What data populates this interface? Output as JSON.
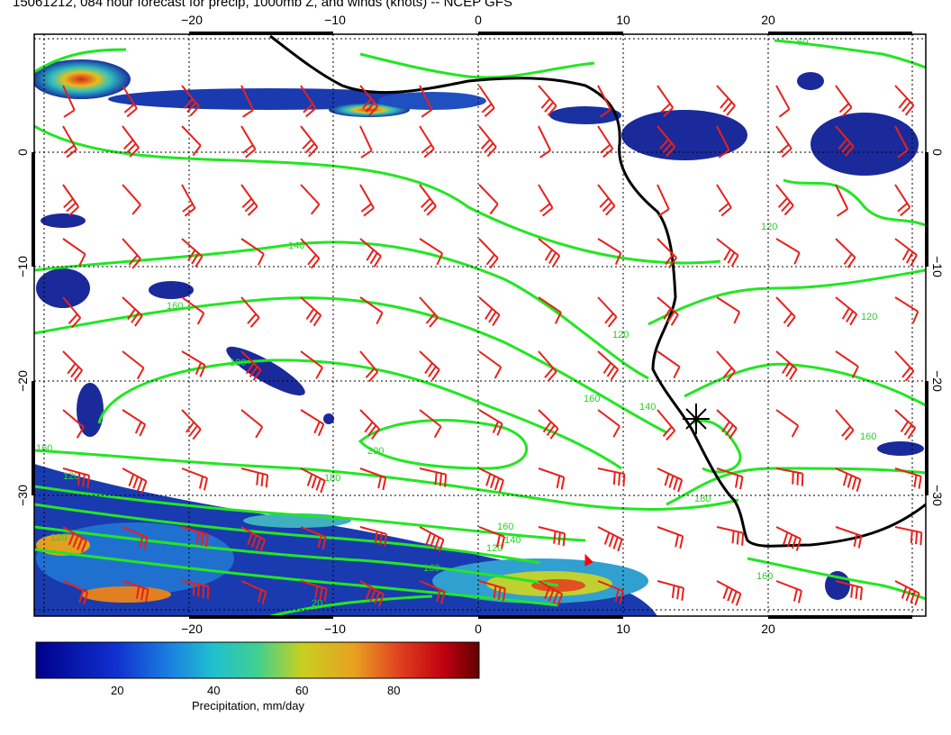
{
  "title": "15061212, 084 hour forecast for precip, 1000mb Z, and winds (knots) -- NCEP GFS",
  "axes": {
    "x_ticks_top": [
      "−20",
      "−10",
      "0",
      "10",
      "20"
    ],
    "x_ticks_bottom": [
      "−20",
      "−10",
      "0",
      "10",
      "20"
    ],
    "y_ticks_left": [
      "0",
      "−10",
      "−20",
      "−30"
    ],
    "y_ticks_right": [
      "0",
      "−10",
      "−20",
      "−30"
    ],
    "lon_range": [
      -30,
      31
    ],
    "lat_range": [
      -40,
      10
    ],
    "grid": "dotted"
  },
  "contour_labels": [
    "140",
    "160",
    "180",
    "200",
    "160",
    "120",
    "140",
    "160",
    "180",
    "120",
    "140",
    "160",
    "180",
    "120",
    "160",
    "160",
    "120",
    "20",
    "120",
    "120",
    "160",
    "60"
  ],
  "colorbar": {
    "title": "Precipitation, mm/day",
    "ticks": [
      "20",
      "40",
      "60",
      "80"
    ],
    "range": [
      0,
      98
    ]
  },
  "colors": {
    "contour": "#22e622",
    "wind_barb": "#e8201a",
    "coast": "#000000",
    "precip_low": "#1a2a9a",
    "precip_high": "#8a1010"
  },
  "markers": [
    {
      "name": "asterisk",
      "lon": 15,
      "lat": -24
    },
    {
      "name": "flag",
      "lon": 7.5,
      "lat": -37.5
    }
  ]
}
